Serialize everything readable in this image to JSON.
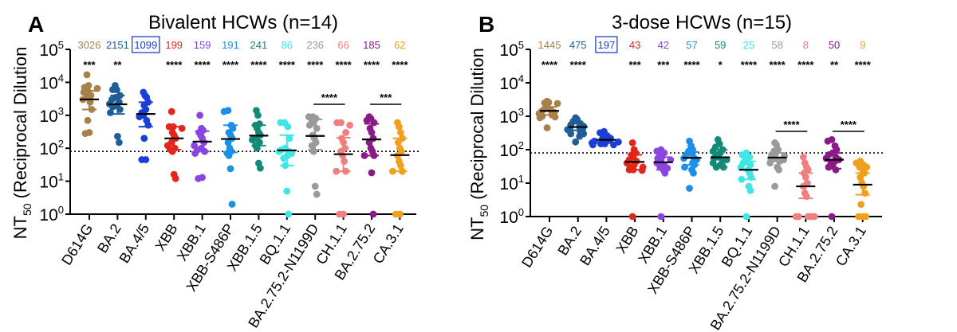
{
  "chart_data": [
    {
      "type": "scatter",
      "panel_label": "A",
      "title": "Bivalent HCWs (n=14)",
      "ylabel_main": "NT",
      "ylabel_sub": "50",
      "ylabel_rest": " (Reciprocal Dilution",
      "yscale": "log",
      "ylim": [
        1,
        100000
      ],
      "yticks": [
        "10^0",
        "10^1",
        "10^2",
        "10^3",
        "10^4",
        "10^5"
      ],
      "detection_limit": 80,
      "categories": [
        "D614G",
        "BA.2",
        "BA.4/5",
        "XBB",
        "XBB.1",
        "XBB-S486P",
        "XBB.1.5",
        "BQ.1.1",
        "BA.2.75.2-N1199D",
        "CH.1.1",
        "BA.2.75.2",
        "CA.3.1"
      ],
      "colors": [
        "#a8804a",
        "#1f5f96",
        "#1a3fd6",
        "#e3261b",
        "#8a45e0",
        "#1e8fe6",
        "#138a78",
        "#3ee6e6",
        "#9a9a9a",
        "#ef8080",
        "#8a1a86",
        "#f0a01e"
      ],
      "gmt_labels": [
        "3026",
        "2151",
        "1099",
        "199",
        "159",
        "191",
        "241",
        "86",
        "236",
        "66",
        "185",
        "62"
      ],
      "boxed_index": 2,
      "significance": [
        "***",
        "**",
        "",
        "****",
        "****",
        "****",
        "****",
        "****",
        "****",
        "****",
        "****",
        "****"
      ],
      "comparisons": [
        {
          "from": "BA.2.75.2-N1199D",
          "to": "CH.1.1",
          "label": "****"
        },
        {
          "from": "BA.2.75.2",
          "to": "CA.3.1",
          "label": "***"
        }
      ],
      "gmt": [
        3026,
        2151,
        1099,
        199,
        159,
        191,
        241,
        86,
        236,
        66,
        185,
        62
      ],
      "ci": [
        [
          1500,
          5500
        ],
        [
          1100,
          4000
        ],
        [
          450,
          2500
        ],
        [
          90,
          450
        ],
        [
          80,
          330
        ],
        [
          75,
          500
        ],
        [
          120,
          500
        ],
        [
          30,
          250
        ],
        [
          90,
          750
        ],
        [
          20,
          210
        ],
        [
          60,
          550
        ],
        [
          20,
          200
        ]
      ],
      "points": [
        [
          17000,
          8000,
          7000,
          6500,
          5500,
          5000,
          4000,
          3500,
          3000,
          2500,
          1500,
          700,
          300,
          280
        ],
        [
          8000,
          6000,
          6000,
          4000,
          3500,
          3000,
          2500,
          2200,
          2000,
          1800,
          1500,
          1200,
          230,
          150
        ],
        [
          5000,
          4000,
          3500,
          2500,
          2000,
          1500,
          1200,
          1000,
          900,
          700,
          500,
          200,
          45,
          45
        ],
        [
          1300,
          450,
          450,
          400,
          300,
          250,
          200,
          150,
          120,
          100,
          90,
          80,
          16,
          12
        ],
        [
          1000,
          400,
          350,
          300,
          250,
          200,
          150,
          120,
          100,
          90,
          80,
          70,
          13,
          12
        ],
        [
          1400,
          1300,
          500,
          400,
          300,
          250,
          200,
          150,
          100,
          80,
          70,
          60,
          24,
          2
        ],
        [
          1400,
          1000,
          550,
          500,
          400,
          300,
          250,
          200,
          180,
          150,
          120,
          100,
          35,
          25
        ],
        [
          600,
          600,
          450,
          200,
          100,
          90,
          80,
          80,
          70,
          60,
          50,
          30,
          5,
          1
        ],
        [
          900,
          900,
          800,
          700,
          600,
          500,
          400,
          250,
          200,
          150,
          120,
          80,
          7,
          4
        ],
        [
          600,
          600,
          500,
          300,
          200,
          150,
          100,
          80,
          60,
          40,
          20,
          20,
          1,
          1
        ],
        [
          900,
          800,
          700,
          600,
          400,
          300,
          200,
          150,
          100,
          80,
          60,
          60,
          18,
          1
        ],
        [
          600,
          450,
          300,
          200,
          150,
          100,
          80,
          60,
          40,
          30,
          20,
          20,
          1,
          1
        ]
      ]
    },
    {
      "type": "scatter",
      "panel_label": "B",
      "title": "3-dose HCWs (n=15)",
      "ylabel_main": "NT",
      "ylabel_sub": "50",
      "ylabel_rest": " (Reciprocal Dilution",
      "yscale": "log",
      "ylim": [
        1,
        100000
      ],
      "yticks": [
        "10^0",
        "10^1",
        "10^2",
        "10^3",
        "10^4",
        "10^5"
      ],
      "detection_limit": 80,
      "categories": [
        "D614G",
        "BA.2",
        "BA.4/5",
        "XBB",
        "XBB.1",
        "XBB-S486P",
        "XBB.1.5",
        "BQ.1.1",
        "BA.2.75.2-N1199D",
        "CH.1.1",
        "BA.2.75.2",
        "CA.3.1"
      ],
      "colors": [
        "#a8804a",
        "#1f5f96",
        "#1a3fd6",
        "#e3261b",
        "#8a45e0",
        "#1e8fe6",
        "#138a78",
        "#3ee6e6",
        "#9a9a9a",
        "#ef8080",
        "#8a1a86",
        "#f0a01e"
      ],
      "gmt_labels": [
        "1445",
        "475",
        "197",
        "43",
        "42",
        "57",
        "59",
        "25",
        "58",
        "8",
        "50",
        "9"
      ],
      "boxed_index": 2,
      "significance": [
        "****",
        "****",
        "",
        "***",
        "***",
        "****",
        "*",
        "****",
        "****",
        "****",
        "**",
        "****"
      ],
      "comparisons": [
        {
          "from": "BA.2.75.2-N1199D",
          "to": "CH.1.1",
          "label": "****"
        },
        {
          "from": "BA.2.75.2",
          "to": "CA.3.1",
          "label": "****"
        }
      ],
      "gmt": [
        1445,
        475,
        197,
        43,
        42,
        57,
        59,
        25,
        58,
        8,
        50,
        9
      ],
      "ci": [
        [
          1100,
          1900
        ],
        [
          380,
          600
        ],
        [
          170,
          230
        ],
        [
          25,
          70
        ],
        [
          25,
          60
        ],
        [
          35,
          85
        ],
        [
          30,
          100
        ],
        [
          13,
          45
        ],
        [
          45,
          80
        ],
        [
          3.5,
          20
        ],
        [
          27,
          80
        ],
        [
          4.5,
          20
        ]
      ],
      "points": [
        [
          2800,
          2600,
          2500,
          2400,
          1800,
          1600,
          1500,
          1400,
          1300,
          1200,
          1100,
          1000,
          950,
          900,
          450
        ],
        [
          900,
          800,
          700,
          600,
          550,
          500,
          480,
          450,
          420,
          400,
          350,
          300,
          300,
          250,
          170
        ],
        [
          350,
          320,
          260,
          250,
          220,
          200,
          200,
          190,
          180,
          170,
          160,
          150,
          150,
          140,
          140
        ],
        [
          160,
          100,
          80,
          70,
          60,
          50,
          45,
          40,
          35,
          30,
          30,
          25,
          25,
          24,
          1
        ],
        [
          100,
          90,
          80,
          70,
          60,
          55,
          50,
          45,
          40,
          35,
          30,
          28,
          25,
          20,
          1
        ],
        [
          180,
          130,
          100,
          90,
          80,
          70,
          60,
          55,
          50,
          40,
          35,
          30,
          25,
          20,
          7
        ],
        [
          200,
          150,
          120,
          100,
          90,
          80,
          70,
          60,
          55,
          50,
          45,
          40,
          35,
          30,
          30
        ],
        [
          80,
          70,
          60,
          50,
          45,
          40,
          35,
          30,
          25,
          20,
          15,
          13,
          8,
          6,
          1
        ],
        [
          160,
          140,
          100,
          90,
          80,
          70,
          65,
          60,
          55,
          50,
          45,
          40,
          30,
          25,
          8
        ],
        [
          60,
          40,
          30,
          25,
          20,
          15,
          10,
          8,
          5,
          4,
          1,
          1,
          1,
          1,
          1
        ],
        [
          200,
          180,
          130,
          100,
          80,
          70,
          60,
          55,
          50,
          45,
          40,
          35,
          30,
          25,
          1
        ],
        [
          45,
          40,
          35,
          30,
          30,
          25,
          20,
          15,
          10,
          8,
          5,
          2.3,
          1,
          1,
          1
        ]
      ]
    }
  ]
}
